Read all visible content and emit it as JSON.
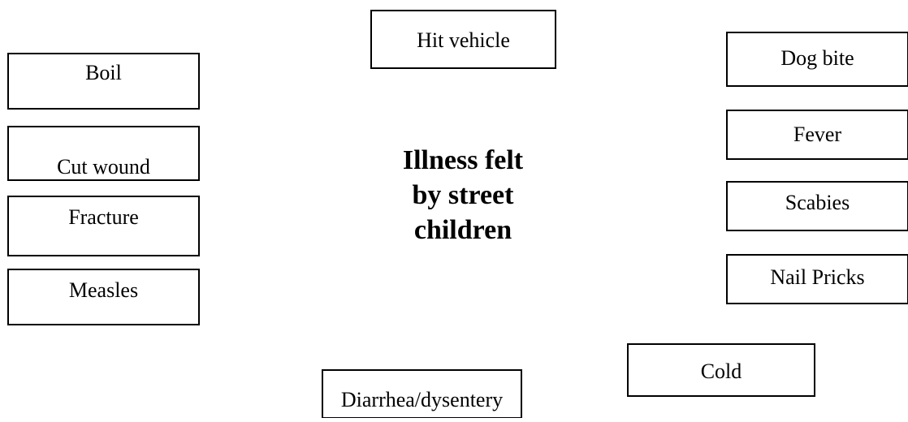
{
  "center": {
    "lines": [
      "Illness felt",
      "by street",
      "children"
    ]
  },
  "nodes": [
    {
      "label": "Hit vehicle"
    },
    {
      "label": "Boil"
    },
    {
      "label": "Cut wound"
    },
    {
      "label": "Fracture"
    },
    {
      "label": "Measles"
    },
    {
      "label": "Dog bite"
    },
    {
      "label": "Fever"
    },
    {
      "label": "Scabies"
    },
    {
      "label": "Nail Pricks"
    },
    {
      "label": "Cold"
    },
    {
      "label": "Diarrhea/dysentery"
    }
  ]
}
